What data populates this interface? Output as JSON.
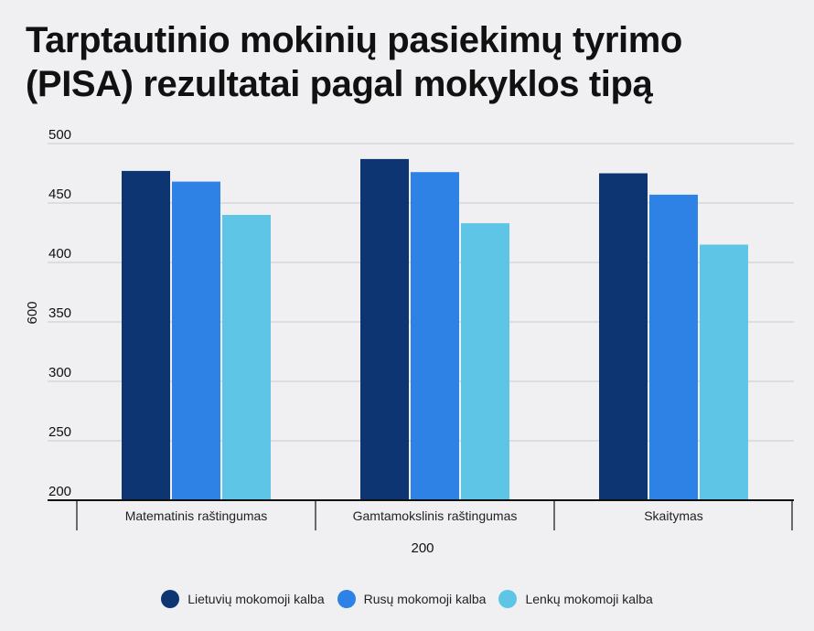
{
  "title": "Tarptautinio mokinių pasiekimų tyrimo (PISA) rezultatai pagal mokyklos tipą",
  "chart_data": {
    "type": "bar",
    "title": "Tarptautinio mokinių pasiekimų tyrimo (PISA) rezultatai pagal mokyklos tipą",
    "categories": [
      "Matematinis raštingumas",
      "Gamtamokslinis raštingumas",
      "Skaitymas"
    ],
    "series": [
      {
        "name": "Lietuvių mokomoji kalba",
        "color": "#0d3571",
        "values": [
          477,
          487,
          475
        ]
      },
      {
        "name": "Rusų mokomoji kalba",
        "color": "#2e82e5",
        "values": [
          468,
          476,
          457
        ]
      },
      {
        "name": "Lenkų mokomoji kalba",
        "color": "#5ec5e6",
        "values": [
          440,
          433,
          415
        ]
      }
    ],
    "xlabel": "200",
    "ylabel": "600",
    "ylim": [
      200,
      500
    ],
    "yticks": [
      200,
      250,
      300,
      350,
      400,
      450,
      500
    ],
    "grid": true,
    "legend": "bottom"
  }
}
